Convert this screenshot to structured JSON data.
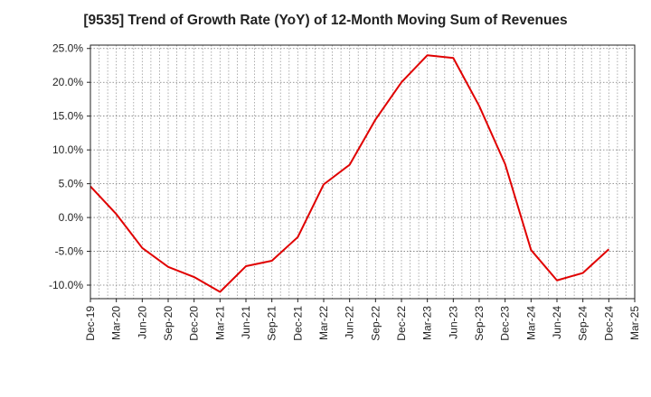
{
  "chart_data": {
    "type": "line",
    "title": "[9535]  Trend of Growth Rate (YoY) of 12-Month Moving Sum of Revenues",
    "xlabel": "",
    "ylabel": "",
    "x_ticks": [
      "Dec-19",
      "Mar-20",
      "Jun-20",
      "Sep-20",
      "Dec-20",
      "Mar-21",
      "Jun-21",
      "Sep-21",
      "Dec-21",
      "Mar-22",
      "Jun-22",
      "Sep-22",
      "Dec-22",
      "Mar-23",
      "Jun-23",
      "Sep-23",
      "Dec-23",
      "Mar-24",
      "Jun-24",
      "Sep-24",
      "Dec-24",
      "Mar-25"
    ],
    "y_ticks": [
      "25.0%",
      "20.0%",
      "15.0%",
      "10.0%",
      "5.0%",
      "0.0%",
      "-5.0%",
      "-10.0%"
    ],
    "ylim": [
      -12.0,
      25.5
    ],
    "grid": true,
    "series": [
      {
        "color": "#e00000",
        "x": [
          "Dec-19",
          "Mar-20",
          "Jun-20",
          "Sep-20",
          "Dec-20",
          "Mar-21",
          "Jun-21",
          "Sep-21",
          "Dec-21",
          "Mar-22",
          "Jun-22",
          "Sep-22",
          "Dec-22",
          "Mar-23",
          "Jun-23",
          "Sep-23",
          "Dec-23",
          "Mar-24",
          "Jun-24",
          "Sep-24",
          "Dec-24"
        ],
        "values": [
          4.6,
          0.5,
          -4.5,
          -7.3,
          -8.8,
          -11.0,
          -7.2,
          -6.4,
          -2.9,
          4.9,
          7.8,
          14.5,
          20.0,
          24.0,
          23.6,
          16.5,
          7.9,
          -4.8,
          -9.3,
          -8.2,
          -4.7
        ]
      }
    ]
  }
}
